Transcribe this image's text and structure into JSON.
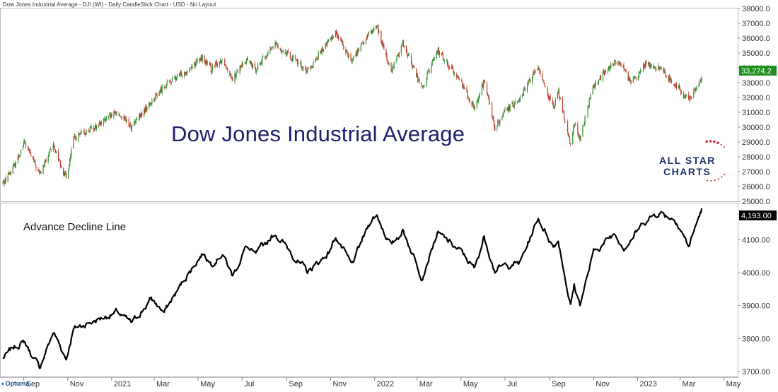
{
  "header": {
    "title": "Dow Jones Industrial Average - DJI (WI) - Daily CandleStick Chart - USD - No Layout"
  },
  "watermark": "Dow Jones Industrial Average",
  "logo": {
    "line1": "ALL STAR",
    "line2": "CHARTS"
  },
  "footer_logo": "Optuma",
  "colors": {
    "up": "#2e8b2e",
    "down": "#c0392b",
    "accent_green": "#1d8f1d",
    "line": "#000000",
    "brand": "#1e2f6b"
  },
  "chart_data": [
    {
      "type": "candlestick",
      "title": "Dow Jones Industrial Average",
      "ylim": [
        25000,
        38000
      ],
      "yticks": [
        "38000.0",
        "37000.0",
        "36000.0",
        "35000.0",
        "34000.0",
        "33000.0",
        "32000.0",
        "31000.0",
        "30000.0",
        "29000.0",
        "28000.0",
        "27000.0",
        "26000.0",
        "25000.0"
      ],
      "last_value_label": "33,274.2",
      "x_range": [
        "2020-08-01",
        "2023-05-20"
      ],
      "anchors": [
        [
          "2020-08-03",
          26200
        ],
        [
          "2020-08-20",
          27500
        ],
        [
          "2020-09-02",
          29000
        ],
        [
          "2020-09-23",
          26800
        ],
        [
          "2020-10-12",
          28800
        ],
        [
          "2020-10-30",
          26500
        ],
        [
          "2020-11-09",
          29200
        ],
        [
          "2020-12-15",
          30200
        ],
        [
          "2021-01-08",
          31000
        ],
        [
          "2021-01-29",
          30000
        ],
        [
          "2021-02-25",
          31700
        ],
        [
          "2021-03-15",
          32800
        ],
        [
          "2021-04-15",
          33800
        ],
        [
          "2021-05-07",
          34700
        ],
        [
          "2021-05-19",
          33900
        ],
        [
          "2021-06-04",
          34600
        ],
        [
          "2021-06-18",
          33300
        ],
        [
          "2021-07-07",
          34600
        ],
        [
          "2021-07-19",
          33900
        ],
        [
          "2021-08-16",
          35600
        ],
        [
          "2021-09-30",
          33800
        ],
        [
          "2021-10-29",
          35800
        ],
        [
          "2021-11-08",
          36400
        ],
        [
          "2021-11-30",
          34500
        ],
        [
          "2021-12-28",
          36500
        ],
        [
          "2022-01-04",
          36800
        ],
        [
          "2022-01-24",
          33700
        ],
        [
          "2022-02-09",
          35700
        ],
        [
          "2022-03-08",
          32600
        ],
        [
          "2022-03-29",
          35200
        ],
        [
          "2022-05-02",
          33000
        ],
        [
          "2022-05-20",
          31200
        ],
        [
          "2022-06-02",
          33200
        ],
        [
          "2022-06-17",
          29900
        ],
        [
          "2022-07-01",
          31000
        ],
        [
          "2022-07-22",
          32000
        ],
        [
          "2022-08-16",
          34100
        ],
        [
          "2022-09-06",
          31200
        ],
        [
          "2022-09-13",
          32400
        ],
        [
          "2022-09-30",
          28800
        ],
        [
          "2022-10-05",
          30300
        ],
        [
          "2022-10-13",
          29200
        ],
        [
          "2022-11-01",
          32800
        ],
        [
          "2022-11-30",
          34400
        ],
        [
          "2022-12-13",
          34100
        ],
        [
          "2022-12-22",
          32900
        ],
        [
          "2023-01-13",
          34300
        ],
        [
          "2023-01-31",
          34000
        ],
        [
          "2023-02-24",
          32800
        ],
        [
          "2023-03-13",
          31800
        ],
        [
          "2023-03-31",
          33274
        ]
      ]
    },
    {
      "type": "line",
      "title": "Advance Decline Line",
      "ylim": [
        3685,
        4210
      ],
      "yticks": [
        "4100.00",
        "4000.00",
        "3900.00",
        "3800.00",
        "3700.00"
      ],
      "last_value_label": "4,193.00",
      "x_range": [
        "2020-08-01",
        "2023-05-20"
      ],
      "anchors": [
        [
          "2020-08-03",
          3740
        ],
        [
          "2020-08-20",
          3775
        ],
        [
          "2020-09-02",
          3790
        ],
        [
          "2020-09-23",
          3710
        ],
        [
          "2020-10-12",
          3820
        ],
        [
          "2020-10-30",
          3740
        ],
        [
          "2020-11-09",
          3830
        ],
        [
          "2020-12-15",
          3860
        ],
        [
          "2021-01-08",
          3880
        ],
        [
          "2021-01-29",
          3845
        ],
        [
          "2021-02-25",
          3920
        ],
        [
          "2021-03-15",
          3880
        ],
        [
          "2021-04-15",
          3990
        ],
        [
          "2021-05-07",
          4060
        ],
        [
          "2021-05-19",
          4030
        ],
        [
          "2021-06-04",
          4060
        ],
        [
          "2021-06-18",
          3990
        ],
        [
          "2021-07-07",
          4080
        ],
        [
          "2021-07-19",
          4050
        ],
        [
          "2021-08-16",
          4120
        ],
        [
          "2021-09-30",
          4000
        ],
        [
          "2021-10-29",
          4060
        ],
        [
          "2021-11-08",
          4110
        ],
        [
          "2021-11-30",
          4020
        ],
        [
          "2021-12-28",
          4165
        ],
        [
          "2022-01-04",
          4175
        ],
        [
          "2022-01-24",
          4080
        ],
        [
          "2022-02-09",
          4130
        ],
        [
          "2022-03-08",
          3990
        ],
        [
          "2022-03-29",
          4120
        ],
        [
          "2022-05-02",
          4060
        ],
        [
          "2022-05-20",
          4010
        ],
        [
          "2022-06-02",
          4110
        ],
        [
          "2022-06-17",
          4010
        ],
        [
          "2022-07-01",
          4020
        ],
        [
          "2022-07-22",
          4030
        ],
        [
          "2022-08-16",
          4165
        ],
        [
          "2022-09-06",
          4080
        ],
        [
          "2022-09-13",
          4100
        ],
        [
          "2022-09-30",
          3900
        ],
        [
          "2022-10-05",
          3960
        ],
        [
          "2022-10-13",
          3905
        ],
        [
          "2022-11-01",
          4060
        ],
        [
          "2022-11-30",
          4120
        ],
        [
          "2022-12-13",
          4080
        ],
        [
          "2022-12-22",
          4100
        ],
        [
          "2023-01-13",
          4160
        ],
        [
          "2023-01-31",
          4185
        ],
        [
          "2023-02-24",
          4160
        ],
        [
          "2023-03-13",
          4080
        ],
        [
          "2023-03-31",
          4193
        ]
      ]
    }
  ],
  "x_axis": {
    "ticks": [
      {
        "label": "Sep",
        "date": "2020-09-01"
      },
      {
        "label": "Nov",
        "date": "2020-11-01"
      },
      {
        "label": "2021",
        "date": "2021-01-01"
      },
      {
        "label": "Mar",
        "date": "2021-03-01"
      },
      {
        "label": "May",
        "date": "2021-05-01"
      },
      {
        "label": "Jul",
        "date": "2021-07-01"
      },
      {
        "label": "Sep",
        "date": "2021-09-01"
      },
      {
        "label": "Nov",
        "date": "2021-11-01"
      },
      {
        "label": "2022",
        "date": "2022-01-01"
      },
      {
        "label": "Mar",
        "date": "2022-03-01"
      },
      {
        "label": "May",
        "date": "2022-05-01"
      },
      {
        "label": "Jul",
        "date": "2022-07-01"
      },
      {
        "label": "Sep",
        "date": "2022-09-01"
      },
      {
        "label": "Nov",
        "date": "2022-11-01"
      },
      {
        "label": "2023",
        "date": "2023-01-01"
      },
      {
        "label": "Mar",
        "date": "2023-03-01"
      },
      {
        "label": "May",
        "date": "2023-05-01"
      }
    ]
  }
}
